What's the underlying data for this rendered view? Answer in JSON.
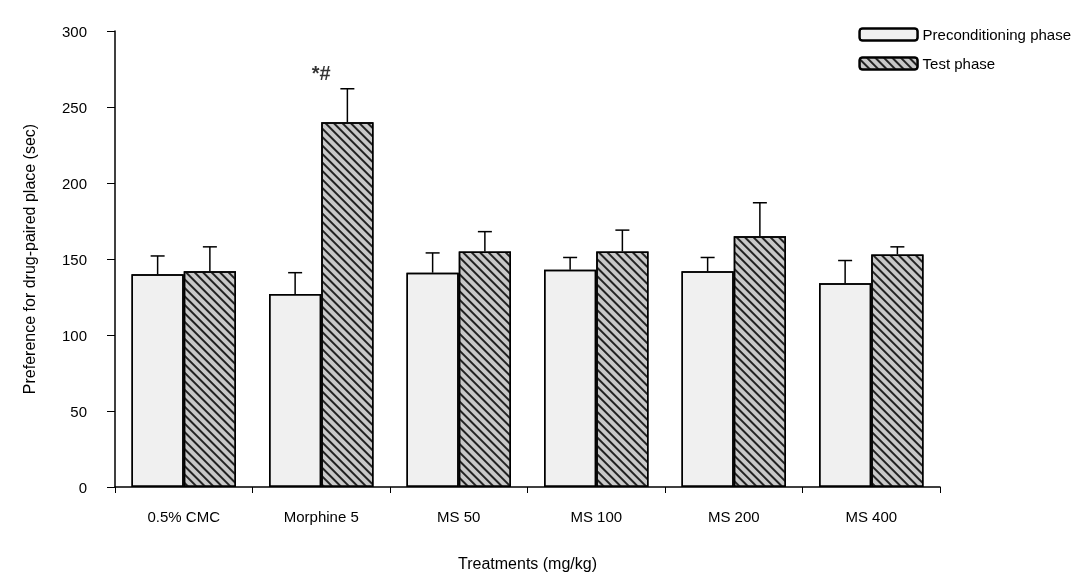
{
  "chart_data": {
    "type": "bar",
    "xlabel": "Treatments (mg/kg)",
    "ylabel": "Preference for drug-paired place (sec)",
    "categories": [
      "0.5% CMC",
      "Morphine 5",
      "MS 50",
      "MS 100",
      "MS 200",
      "MS 400"
    ],
    "series": [
      {
        "name": "Preconditioning phase",
        "color": "#f0f0f0",
        "values": [
          140,
          127,
          141,
          143,
          142,
          134
        ],
        "errors": [
          [
            140,
            152
          ],
          [
            127,
            141
          ],
          [
            141,
            154
          ],
          [
            143,
            151
          ],
          [
            142,
            151
          ],
          [
            134,
            149
          ]
        ]
      },
      {
        "name": "Test phase",
        "color": "#c8c8c8",
        "values": [
          142,
          240,
          155,
          155,
          165,
          153
        ],
        "errors": [
          [
            142,
            158
          ],
          [
            240,
            262
          ],
          [
            155,
            168
          ],
          [
            155,
            169
          ],
          [
            165,
            187
          ],
          [
            153,
            158
          ]
        ]
      }
    ],
    "ylim": [
      0,
      300
    ],
    "yticks": [
      0,
      50,
      100,
      150,
      200,
      250,
      300
    ],
    "grid": false,
    "legend": "top right",
    "annotations": [
      "*#"
    ]
  }
}
